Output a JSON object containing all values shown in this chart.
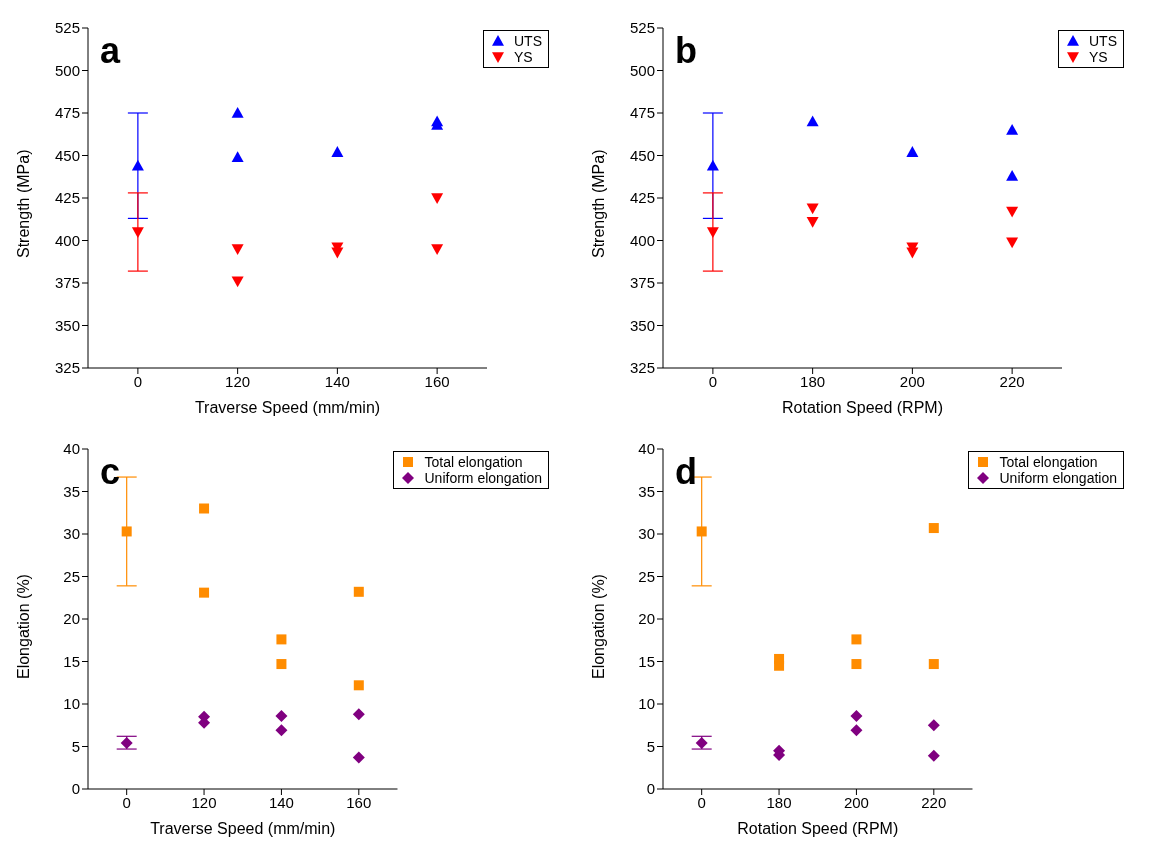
{
  "chart_data": [
    {
      "type": "scatter",
      "title": "a",
      "xlabel": "Traverse Speed (mm/min)",
      "ylabel": "Strength (MPa)",
      "categories": [
        "0",
        "120",
        "140",
        "160"
      ],
      "ylim": [
        325,
        525
      ],
      "yticks": [
        325,
        350,
        375,
        400,
        425,
        450,
        475,
        500,
        525
      ],
      "legend": "top right",
      "series": [
        {
          "name": "UTS",
          "color": "#0000ff",
          "marker": "triangle",
          "x": [
            "0",
            "120",
            "120",
            "140",
            "160",
            "160"
          ],
          "values": [
            444,
            475,
            449,
            452,
            470,
            468
          ],
          "errors": [
            [
              413,
              475
            ],
            null,
            null,
            null,
            null,
            null
          ]
        },
        {
          "name": "YS",
          "color": "#ff0000",
          "marker": "triangle-down",
          "x": [
            "0",
            "120",
            "120",
            "140",
            "140",
            "160",
            "160"
          ],
          "values": [
            405,
            395,
            376,
            396,
            393,
            425,
            395
          ],
          "errors": [
            [
              382,
              428
            ],
            null,
            null,
            null,
            null,
            null,
            null
          ]
        }
      ]
    },
    {
      "type": "scatter",
      "title": "b",
      "xlabel": "Rotation Speed (RPM)",
      "ylabel": "Strength (MPa)",
      "categories": [
        "0",
        "180",
        "200",
        "220"
      ],
      "ylim": [
        325,
        525
      ],
      "yticks": [
        325,
        350,
        375,
        400,
        425,
        450,
        475,
        500,
        525
      ],
      "legend": "top right",
      "series": [
        {
          "name": "UTS",
          "color": "#0000ff",
          "marker": "triangle",
          "x": [
            "0",
            "180",
            "180",
            "200",
            "220",
            "220"
          ],
          "values": [
            444,
            470,
            null,
            452,
            465,
            438
          ],
          "errors": [
            [
              413,
              475
            ],
            null,
            null,
            null,
            null,
            null
          ]
        },
        {
          "name": "YS",
          "color": "#ff0000",
          "marker": "triangle-down",
          "x": [
            "0",
            "180",
            "180",
            "200",
            "200",
            "220",
            "220"
          ],
          "values": [
            405,
            419,
            411,
            396,
            393,
            417,
            399
          ],
          "errors": [
            [
              382,
              428
            ],
            null,
            null,
            null,
            null,
            null,
            null
          ]
        }
      ]
    },
    {
      "type": "scatter",
      "title": "c",
      "xlabel": "Traverse Speed (mm/min)",
      "ylabel": "Elongation (%)",
      "categories": [
        "0",
        "120",
        "140",
        "160"
      ],
      "ylim": [
        0,
        40
      ],
      "yticks": [
        0,
        5,
        10,
        15,
        20,
        25,
        30,
        35,
        40
      ],
      "legend": "top right",
      "series": [
        {
          "name": "Total elongation",
          "color": "#ff8c00",
          "marker": "square",
          "x": [
            "0",
            "120",
            "120",
            "140",
            "140",
            "160",
            "160"
          ],
          "values": [
            30.3,
            33.0,
            23.1,
            17.6,
            14.7,
            23.2,
            12.2
          ],
          "errors": [
            [
              23.9,
              36.7
            ],
            null,
            null,
            null,
            null,
            null,
            null
          ]
        },
        {
          "name": "Uniform elongation",
          "color": "#800080",
          "marker": "diamond",
          "x": [
            "0",
            "120",
            "120",
            "140",
            "140",
            "160",
            "160"
          ],
          "values": [
            5.4,
            8.5,
            7.8,
            8.6,
            6.9,
            8.8,
            3.7
          ],
          "errors": [
            [
              4.7,
              6.2
            ],
            null,
            null,
            null,
            null,
            null,
            null
          ]
        }
      ]
    },
    {
      "type": "scatter",
      "title": "d",
      "xlabel": "Rotation Speed (RPM)",
      "ylabel": "Elongation (%)",
      "categories": [
        "0",
        "180",
        "200",
        "220"
      ],
      "ylim": [
        0,
        40
      ],
      "yticks": [
        0,
        5,
        10,
        15,
        20,
        25,
        30,
        35,
        40
      ],
      "legend": "top right",
      "series": [
        {
          "name": "Total elongation",
          "color": "#ff8c00",
          "marker": "square",
          "x": [
            "0",
            "180",
            "180",
            "200",
            "200",
            "220",
            "220"
          ],
          "values": [
            30.3,
            15.3,
            14.5,
            17.6,
            14.7,
            30.7,
            14.7
          ],
          "errors": [
            [
              23.9,
              36.7
            ],
            null,
            null,
            null,
            null,
            null,
            null
          ]
        },
        {
          "name": "Uniform elongation",
          "color": "#800080",
          "marker": "diamond",
          "x": [
            "0",
            "180",
            "180",
            "200",
            "200",
            "220",
            "220"
          ],
          "values": [
            5.4,
            4.5,
            4.0,
            8.6,
            6.9,
            7.5,
            3.9
          ],
          "errors": [
            [
              4.7,
              6.2
            ],
            null,
            null,
            null,
            null,
            null,
            null
          ]
        }
      ]
    }
  ]
}
